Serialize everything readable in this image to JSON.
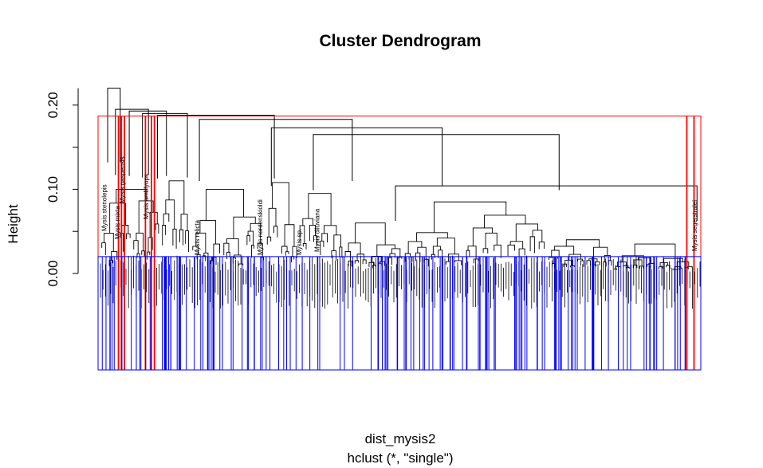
{
  "chart_data": {
    "type": "dendrogram",
    "title": "Cluster Dendrogram",
    "ylabel": "Height",
    "xlabel": "dist_mysis2",
    "sub": "hclust (*, \"single\")",
    "ylim": [
      0,
      0.22
    ],
    "y_ticks": [
      0.0,
      0.1,
      0.2
    ],
    "y_tick_labels": [
      "0.00",
      "0.10",
      "0.20"
    ],
    "leaf_count": 236,
    "cut_heights": [
      {
        "height": 0.187,
        "color": "#ff0000"
      },
      {
        "height": 0.02,
        "color": "#0000ff"
      }
    ],
    "visible_leaf_labels": [
      "Mysis stenolepis",
      "Mysis mixta",
      "Mysis gaspensis",
      "Mysis amblyops",
      "Mysis relicta",
      "Mysis nordenskioldi",
      "Mysis sp.",
      "Mysis diluviana",
      "Mysis segerstralei"
    ],
    "merges_upper": [
      {
        "x_range": [
          0.012,
          0.033
        ],
        "height": 0.22
      },
      {
        "x_range": [
          0.025,
          0.08
        ],
        "height": 0.195
      },
      {
        "x_range": [
          0.048,
          0.11
        ],
        "height": 0.193
      },
      {
        "x_range": [
          0.07,
          0.145
        ],
        "height": 0.19
      },
      {
        "x_range": [
          0.095,
          0.29
        ],
        "height": 0.188
      },
      {
        "x_range": [
          0.165,
          0.42
        ],
        "height": 0.183
      },
      {
        "x_range": [
          0.285,
          0.57
        ],
        "height": 0.173
      },
      {
        "x_range": [
          0.355,
          0.765
        ],
        "height": 0.165
      },
      {
        "x_range": [
          0.492,
          0.995
        ],
        "height": 0.104
      }
    ]
  }
}
